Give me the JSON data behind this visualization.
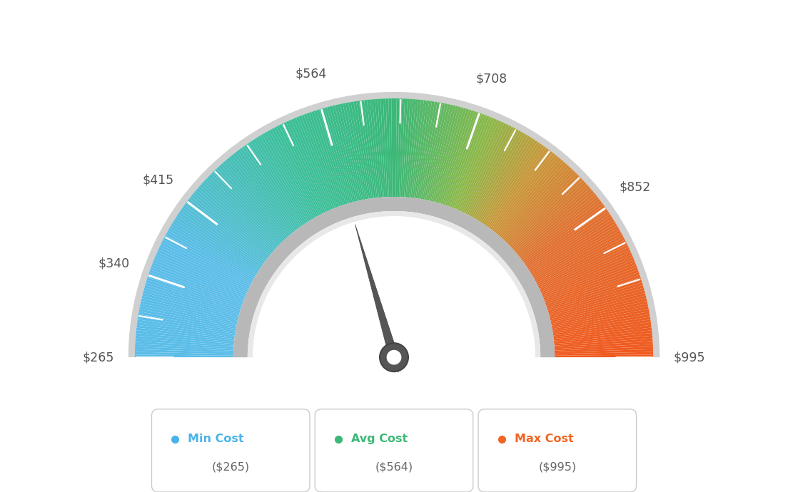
{
  "min_val": 265,
  "max_val": 995,
  "avg_val": 564,
  "labels": [
    "$265",
    "$340",
    "$415",
    "$564",
    "$708",
    "$852",
    "$995"
  ],
  "label_values": [
    265,
    340,
    415,
    564,
    708,
    852,
    995
  ],
  "tick_values": [
    265,
    302.5,
    340,
    377.5,
    415,
    452,
    489.5,
    527,
    564,
    600,
    636,
    672,
    708,
    744,
    780,
    816,
    852,
    888,
    923.5,
    995
  ],
  "major_tick_values": [
    265,
    340,
    415,
    564,
    708,
    852,
    995
  ],
  "legend_labels": [
    "Min Cost",
    "Avg Cost",
    "Max Cost"
  ],
  "legend_values": [
    "($265)",
    "($564)",
    "($995)"
  ],
  "legend_colors": [
    "#4ab3e8",
    "#3cb878",
    "#f26522"
  ],
  "color_stops": [
    [
      0.0,
      "#5bbde8"
    ],
    [
      0.15,
      "#5bbde8"
    ],
    [
      0.35,
      "#3cbf9a"
    ],
    [
      0.5,
      "#3cb878"
    ],
    [
      0.62,
      "#8ab84a"
    ],
    [
      0.7,
      "#c8973a"
    ],
    [
      0.8,
      "#e07030"
    ],
    [
      1.0,
      "#f05a20"
    ]
  ],
  "background_color": "#ffffff",
  "needle_value": 564,
  "needle_color": "#555555",
  "hub_color": "#555555",
  "outer_border_color": "#cccccc",
  "inner_ring_color": "#aaaaaa",
  "inner_ring_light": "#e0e0e0"
}
